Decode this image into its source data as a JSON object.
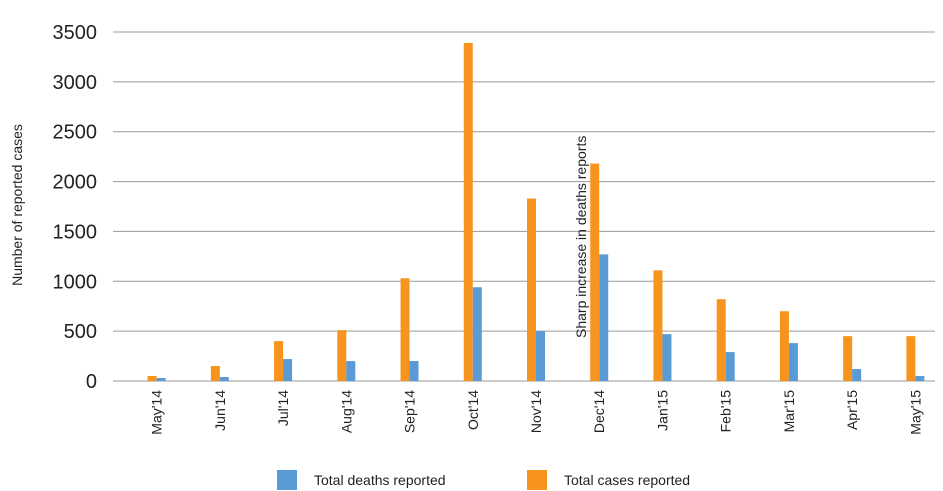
{
  "chart_data": {
    "type": "bar",
    "title": "",
    "xlabel": "",
    "ylabel": "Number of reported cases",
    "ylim": [
      0,
      3500
    ],
    "yticks": [
      0,
      500,
      1000,
      1500,
      2000,
      2500,
      3000,
      3500
    ],
    "grid": true,
    "legend_position": "bottom",
    "categories": [
      "May'14",
      "Jun'14",
      "Jul'14",
      "Aug'14",
      "Sep'14",
      "Oct'14",
      "Nov'14",
      "Dec'14",
      "Jan'15",
      "Feb'15",
      "Mar'15",
      "Apr'15",
      "May'15"
    ],
    "series": [
      {
        "name": "Total cases reported",
        "color": "#F7941D",
        "values": [
          50,
          150,
          400,
          510,
          1030,
          3390,
          1830,
          2180,
          1110,
          820,
          700,
          450,
          450
        ]
      },
      {
        "name": "Total deaths reported",
        "color": "#5B9BD5",
        "values": [
          30,
          40,
          220,
          200,
          200,
          940,
          500,
          1270,
          470,
          290,
          380,
          120,
          50
        ]
      }
    ],
    "legend_order": [
      "Total deaths reported",
      "Total cases reported"
    ],
    "annotations": [
      {
        "text": "Sharp increase in deaths reports",
        "category": "Dec'14"
      }
    ]
  }
}
